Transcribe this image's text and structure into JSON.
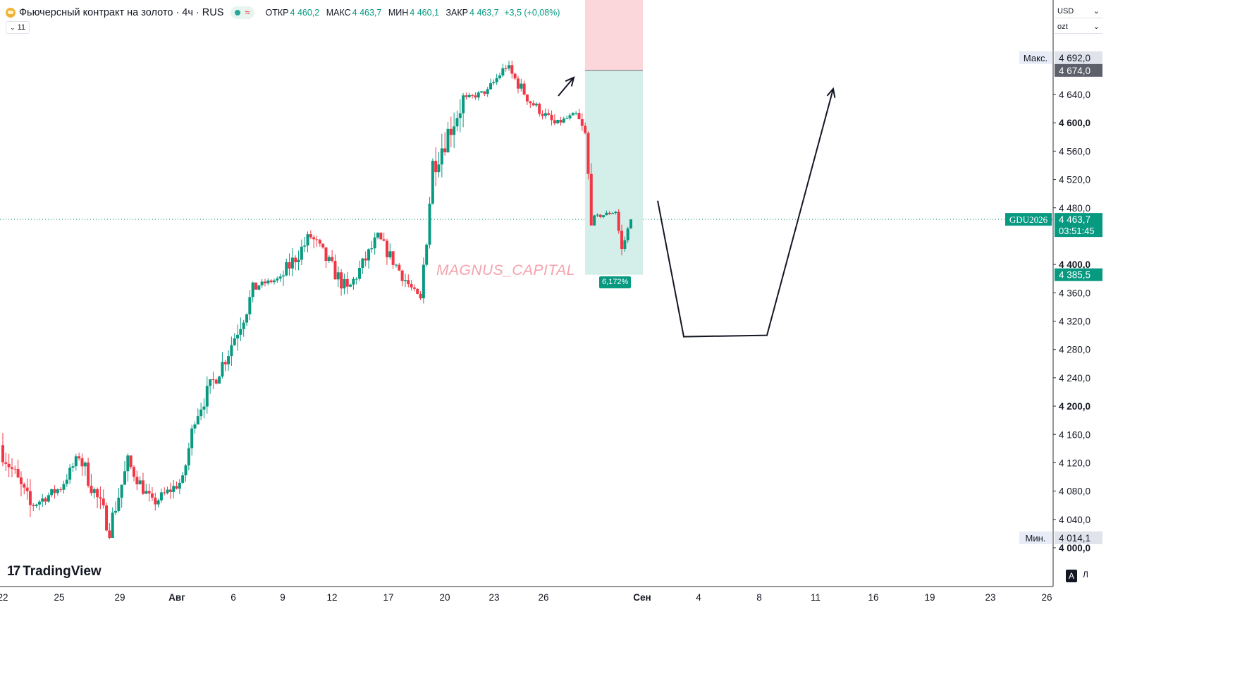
{
  "header": {
    "title": "Фьючерсный контракт на золото · 4ч · RUS",
    "ohlc": [
      {
        "key": "ОТКР",
        "value": "4 460,2"
      },
      {
        "key": "МАКС",
        "value": "4 463,7"
      },
      {
        "key": "МИН",
        "value": "4 460,1"
      },
      {
        "key": "ЗАКР",
        "value": "4 463,7"
      }
    ],
    "change": "+3,5 (+0,08%)",
    "indicators_count": "11"
  },
  "right_panel": {
    "currency": "USD",
    "unit": "ozt",
    "auto_label": "A",
    "log_label": "Л"
  },
  "watermark": "MAGNUS_CAPITAL",
  "branding": "TradingView",
  "chart_data": {
    "type": "candlestick",
    "timeframe": "4h",
    "y_axis": {
      "range": [
        3985,
        4760
      ],
      "ticks": [
        "4 640,0",
        "4 600,0",
        "4 560,0",
        "4 520,0",
        "4 480,0",
        "4 400,0",
        "4 360,0",
        "4 320,0",
        "4 280,0",
        "4 240,0",
        "4 200,0",
        "4 160,0",
        "4 120,0",
        "4 080,0",
        "4 040,0",
        "4 000,0"
      ],
      "tick_values": [
        4640,
        4600,
        4560,
        4520,
        4480,
        4400,
        4360,
        4320,
        4280,
        4240,
        4200,
        4160,
        4120,
        4080,
        4040,
        4000
      ],
      "bold_ticks": [
        4600,
        4400,
        4200,
        4000
      ]
    },
    "x_axis": {
      "labels": [
        "22",
        "25",
        "29",
        "Авг",
        "6",
        "9",
        "12",
        "17",
        "20",
        "23",
        "26",
        "Сен",
        "4",
        "8",
        "11",
        "16",
        "19",
        "23",
        "26"
      ],
      "bold_labels": [
        "Авг",
        "Сен"
      ]
    },
    "badges": [
      {
        "label": "Макс.",
        "value": "4 692,0",
        "price": 4692,
        "style": "max"
      },
      {
        "label": "",
        "value": "4 674,0",
        "price": 4674,
        "style": "stop"
      },
      {
        "label": "GDU2026",
        "value": "4 463,7",
        "time": "03:51:45",
        "price": 4463.7,
        "style": "current"
      },
      {
        "label": "",
        "value": "4 385,5",
        "price": 4385.5,
        "style": "target"
      },
      {
        "label": "Мин.",
        "value": "4 014,1",
        "price": 4014.1,
        "style": "min"
      }
    ],
    "position": {
      "side": "short",
      "entry": 4463.7,
      "stop": 4674.0,
      "stop_top": 4777,
      "target": 4385.5,
      "target_pct": "6,172%"
    },
    "candle_segments": [
      {
        "start_price": 4145,
        "end_price": 4058,
        "min_price": 4040,
        "max_price": 4182,
        "bars": 10
      },
      {
        "start_price": 4058,
        "end_price": 4085,
        "min_price": 4045,
        "max_price": 4110,
        "bars": 10
      },
      {
        "start_price": 4085,
        "end_price": 4130,
        "min_price": 4070,
        "max_price": 4138,
        "bars": 6
      },
      {
        "start_price": 4130,
        "end_price": 4028,
        "min_price": 4012,
        "max_price": 4140,
        "bars": 10
      },
      {
        "start_price": 4028,
        "end_price": 4120,
        "min_price": 4018,
        "max_price": 4135,
        "bars": 6
      },
      {
        "start_price": 4120,
        "end_price": 4062,
        "min_price": 4040,
        "max_price": 4128,
        "bars": 8
      },
      {
        "start_price": 4062,
        "end_price": 4095,
        "min_price": 4050,
        "max_price": 4124,
        "bars": 10
      },
      {
        "start_price": 4095,
        "end_price": 4185,
        "min_price": 4090,
        "max_price": 4195,
        "bars": 4
      },
      {
        "start_price": 4185,
        "end_price": 4268,
        "min_price": 4180,
        "max_price": 4292,
        "bars": 10
      },
      {
        "start_price": 4268,
        "end_price": 4370,
        "min_price": 4250,
        "max_price": 4385,
        "bars": 10
      },
      {
        "start_price": 4370,
        "end_price": 4380,
        "min_price": 4355,
        "max_price": 4390,
        "bars": 8
      },
      {
        "start_price": 4380,
        "end_price": 4440,
        "min_price": 4348,
        "max_price": 4455,
        "bars": 10
      },
      {
        "start_price": 4440,
        "end_price": 4362,
        "min_price": 4342,
        "max_price": 4450,
        "bars": 12
      },
      {
        "start_price": 4362,
        "end_price": 4438,
        "min_price": 4350,
        "max_price": 4445,
        "bars": 10
      },
      {
        "start_price": 4438,
        "end_price": 4372,
        "min_price": 4358,
        "max_price": 4445,
        "bars": 10
      },
      {
        "start_price": 4372,
        "end_price": 4350,
        "min_price": 4340,
        "max_price": 4384,
        "bars": 4
      },
      {
        "start_price": 4350,
        "end_price": 4540,
        "min_price": 4345,
        "max_price": 4550,
        "bars": 4
      },
      {
        "start_price": 4540,
        "end_price": 4632,
        "min_price": 4470,
        "max_price": 4642,
        "bars": 10
      },
      {
        "start_price": 4632,
        "end_price": 4645,
        "min_price": 4622,
        "max_price": 4660,
        "bars": 8
      },
      {
        "start_price": 4645,
        "end_price": 4680,
        "min_price": 4630,
        "max_price": 4692,
        "bars": 6
      },
      {
        "start_price": 4680,
        "end_price": 4630,
        "min_price": 4610,
        "max_price": 4690,
        "bars": 8
      },
      {
        "start_price": 4630,
        "end_price": 4598,
        "min_price": 4585,
        "max_price": 4650,
        "bars": 8
      },
      {
        "start_price": 4598,
        "end_price": 4612,
        "min_price": 4590,
        "max_price": 4628,
        "bars": 7
      },
      {
        "start_price": 4612,
        "end_price": 4583,
        "min_price": 4575,
        "max_price": 4640,
        "bars": 3
      },
      {
        "start_price": 4583,
        "end_price": 4465,
        "min_price": 4455,
        "max_price": 4588,
        "bars": 2
      },
      {
        "start_price": 4465,
        "end_price": 4475,
        "min_price": 4458,
        "max_price": 4486,
        "bars": 8
      },
      {
        "start_price": 4475,
        "end_price": 4420,
        "min_price": 4405,
        "max_price": 4478,
        "bars": 2
      },
      {
        "start_price": 4420,
        "end_price": 4463.7,
        "min_price": 4418,
        "max_price": 4466,
        "bars": 3
      }
    ],
    "drawings": [
      {
        "name": "arrow-down-1",
        "points": [
          [
            4638,
            4664
          ],
          [
            4683,
            4388
          ]
        ],
        "arrow": true
      },
      {
        "name": "zigzag-projection",
        "points": [
          [
            4490,
            4298
          ],
          [
            4300,
            4648
          ],
          [
            4648,
            4292
          ]
        ],
        "arrow": true
      }
    ]
  }
}
